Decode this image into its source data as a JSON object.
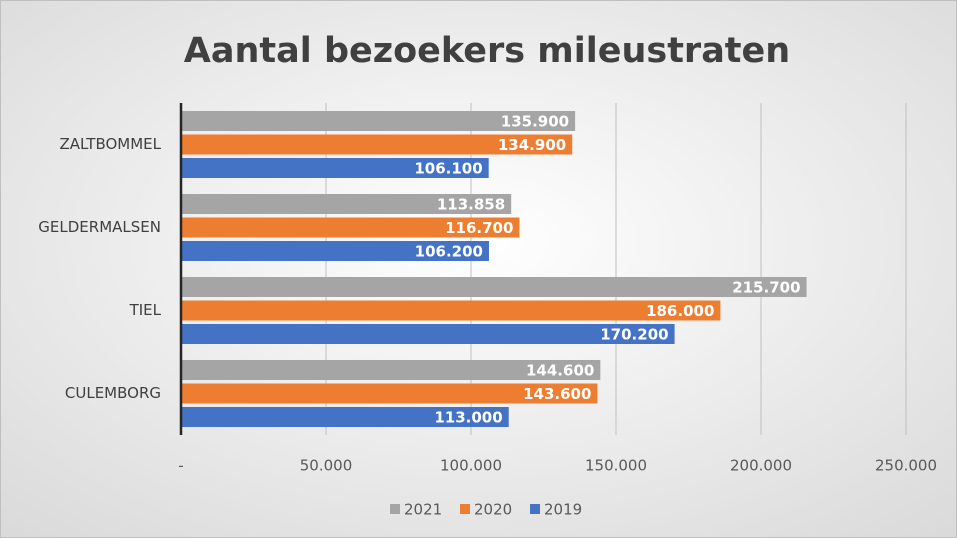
{
  "chart_data": {
    "type": "bar",
    "orientation": "horizontal",
    "title": "Aantal bezoekers mileustraten",
    "categories": [
      "ZALTBOMMEL",
      "GELDERMALSEN",
      "TIEL",
      "CULEMBORG"
    ],
    "series": [
      {
        "name": "2021",
        "color": "#a5a5a5",
        "values": [
          135900,
          113858,
          215700,
          144600
        ],
        "value_labels": [
          "135.900",
          "113.858",
          "215.700",
          "144.600"
        ]
      },
      {
        "name": "2020",
        "color": "#ed7d31",
        "values": [
          134900,
          116700,
          186000,
          143600
        ],
        "value_labels": [
          "134.900",
          "116.700",
          "186.000",
          "143.600"
        ]
      },
      {
        "name": "2019",
        "color": "#4472c4",
        "values": [
          106100,
          106200,
          170200,
          113000
        ],
        "value_labels": [
          "106.100",
          "106.200",
          "170.200",
          "113.000"
        ]
      }
    ],
    "xlim": [
      0,
      250000
    ],
    "xticks": [
      {
        "value": 0,
        "label": "-"
      },
      {
        "value": 50000,
        "label": "50.000"
      },
      {
        "value": 100000,
        "label": "100.000"
      },
      {
        "value": 150000,
        "label": "150.000"
      },
      {
        "value": 200000,
        "label": "200.000"
      },
      {
        "value": 250000,
        "label": "250.000"
      }
    ],
    "grid": true,
    "legend": "bottom"
  }
}
